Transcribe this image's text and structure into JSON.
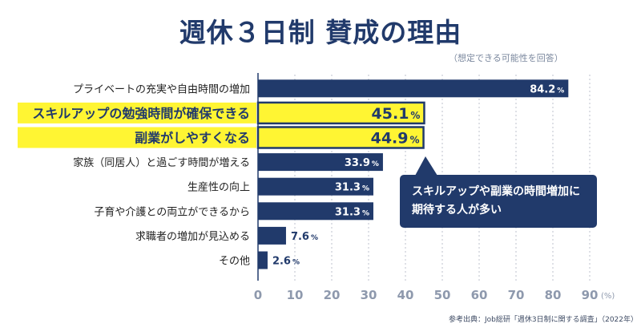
{
  "title": "週休３日制 賛成の理由",
  "note": "（想定できる可能性を回答）",
  "source": "参考出典：Job総研「週休3日制に関する調査」（2022年）",
  "callout": {
    "line1": "スキルアップや副業の時間増加に",
    "line2": "期待する人が多い"
  },
  "colors": {
    "bar": "#213a6b",
    "highlight": "#fff533",
    "grid": "#c7ccd6"
  },
  "chart_data": {
    "type": "bar",
    "orientation": "horizontal",
    "title": "週休３日制 賛成の理由",
    "categories": [
      "プライベートの充実や自由時間の増加",
      "スキルアップの勉強時間が確保できる",
      "副業がしやすくなる",
      "家族（同居人）と過ごす時間が増える",
      "生産性の向上",
      "子育や介護との両立ができるから",
      "求職者の増加が見込める",
      "その他"
    ],
    "values": [
      84.2,
      45.1,
      44.9,
      33.9,
      31.3,
      31.3,
      7.6,
      2.6
    ],
    "value_labels": [
      "84.2",
      "45.1",
      "44.9",
      "33.9",
      "31.3",
      "31.3",
      "7.6",
      "2.6"
    ],
    "value_unit": "%",
    "highlighted": [
      false,
      true,
      true,
      false,
      false,
      false,
      false,
      false
    ],
    "xlim": [
      0,
      90
    ],
    "xticks": [
      0,
      10,
      20,
      30,
      40,
      50,
      60,
      70,
      80,
      90
    ],
    "xunit": "(%)",
    "grid": "vertical dotted"
  }
}
